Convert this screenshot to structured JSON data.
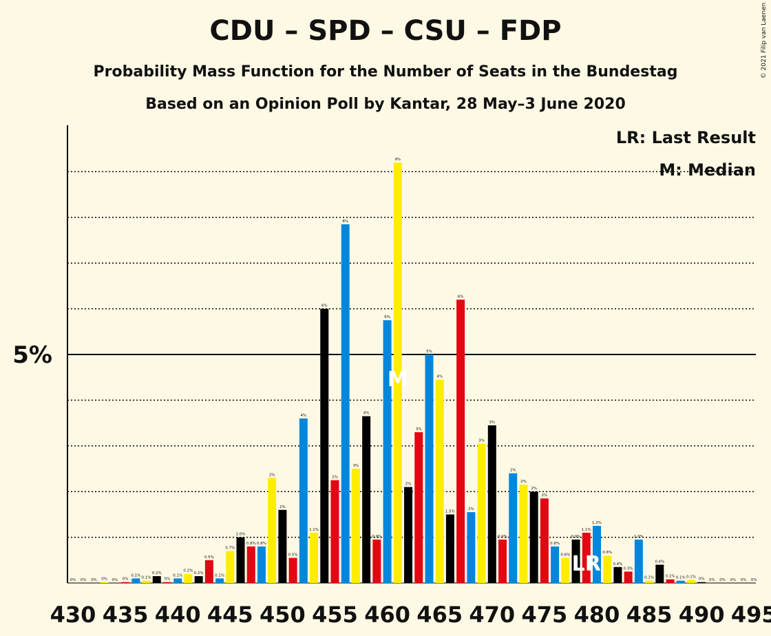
{
  "header": {
    "title": "CDU – SPD – CSU – FDP",
    "subtitle1": "Probability Mass Function for the Number of Seats in the Bundestag",
    "subtitle2": "Based on an Opinion Poll by Kantar, 28 May–3 June 2020",
    "copyright": "© 2021 Filip van Laenen"
  },
  "legend": {
    "last_result": "LR: Last Result",
    "median": "M: Median"
  },
  "colors": {
    "background": "#fef9e5",
    "bar_cycle": [
      "#000000",
      "#e30613",
      "#0087dc",
      "#ffed00"
    ]
  },
  "chart_data": {
    "type": "bar",
    "x": [
      430,
      431,
      432,
      433,
      434,
      435,
      436,
      437,
      438,
      439,
      440,
      441,
      442,
      443,
      444,
      445,
      446,
      447,
      448,
      449,
      450,
      451,
      452,
      453,
      454,
      455,
      456,
      457,
      458,
      459,
      460,
      461,
      462,
      463,
      464,
      465,
      466,
      467,
      468,
      469,
      470,
      471,
      472,
      473,
      474,
      475,
      476,
      477,
      478,
      479,
      480,
      481,
      482,
      483,
      484,
      485,
      486,
      487,
      488,
      489,
      490,
      491,
      492,
      493,
      494,
      495
    ],
    "values": [
      0,
      0,
      0,
      0.02,
      0,
      0.02,
      0.1,
      0.05,
      0.15,
      0.02,
      0.1,
      0.2,
      0.15,
      0.5,
      0.1,
      0.7,
      1.0,
      0.8,
      0.8,
      2.3,
      1.6,
      0.55,
      3.6,
      1.1,
      6.0,
      2.25,
      7.85,
      2.5,
      3.65,
      0.95,
      5.75,
      9.2,
      2.1,
      3.3,
      5.0,
      4.45,
      1.5,
      6.2,
      1.55,
      3.05,
      3.45,
      0.95,
      2.4,
      2.15,
      2.0,
      1.85,
      0.8,
      0.55,
      0.95,
      1.1,
      1.25,
      0.6,
      0.35,
      0.25,
      0.95,
      0.05,
      0.4,
      0.08,
      0.05,
      0.07,
      0.02,
      0,
      0,
      0,
      0,
      0
    ],
    "labels": [
      "0%",
      "0%",
      "0%",
      "0%",
      "0%",
      "0%",
      "0.1%",
      "0.1%",
      "0.2%",
      "0%",
      "0.1%",
      "0.2%",
      "0.2%",
      "0.5%",
      "0.1%",
      "0.7%",
      "1.0%",
      "0.8%",
      "0.8%",
      "2%",
      "2%",
      "0.5%",
      "4%",
      "1.1%",
      "6%",
      "2%",
      "8%",
      "3%",
      "4%",
      "0.9%",
      "6%",
      "9%",
      "2%",
      "3%",
      "5%",
      "4%",
      "1.5%",
      "6%",
      "2%",
      "3%",
      "3%",
      "0.9%",
      "2%",
      "2%",
      "2%",
      "2%",
      "0.8%",
      "0.6%",
      "0.9%",
      "1.1%",
      "1.3%",
      "0.6%",
      "0.4%",
      "0.3%",
      "1.0%",
      "0.1%",
      "0.4%",
      "0.1%",
      "0.1%",
      "0.1%",
      "0%",
      "0%",
      "0%",
      "0%",
      "0%",
      "0%"
    ],
    "x_ticks": [
      "430",
      "435",
      "440",
      "445",
      "450",
      "455",
      "460",
      "465",
      "470",
      "475",
      "480",
      "485",
      "490",
      "495"
    ],
    "y_tick_label": "5%",
    "ylim": [
      0,
      10
    ],
    "median": 461,
    "median_marker": "M",
    "last_result": 479,
    "last_result_marker": "LR",
    "grid": true,
    "legend_position": "top-right"
  }
}
